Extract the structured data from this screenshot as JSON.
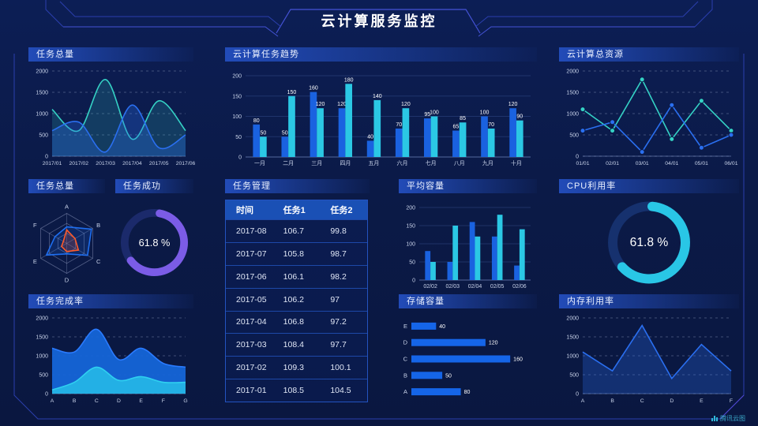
{
  "page": {
    "title": "云计算服务监控",
    "watermark": "腾讯云图"
  },
  "colors": {
    "background": "#0b1a47",
    "blue": "#1a62e0",
    "cyan": "#2bc8e4",
    "teal": "#35d2c5",
    "line_blue": "#2a6ff0",
    "purple": "#7b5ce6",
    "orange": "#ff5a2a",
    "frame_line": "#2b3fae",
    "frame_accent": "#4553d6",
    "table_header_bg": "#1a50b5"
  },
  "chart_data": [
    {
      "id": "task-total",
      "type": "line",
      "title": "任务总量",
      "smooth": true,
      "markers": false,
      "grid": "dashed",
      "x": [
        "2017/01",
        "2017/02",
        "2017/03",
        "2017/04",
        "2017/05",
        "2017/06"
      ],
      "ylim": [
        0,
        2000
      ],
      "yticks": [
        0,
        500,
        1000,
        1500,
        2000
      ],
      "series": [
        {
          "name": "teal-series",
          "color": "#35d2c5",
          "fillOpacity": 0.18,
          "values": [
            1100,
            600,
            1800,
            400,
            1300,
            600
          ]
        },
        {
          "name": "blue-series",
          "color": "#2a6ff0",
          "fillOpacity": 0.3,
          "values": [
            600,
            800,
            100,
            1200,
            200,
            500
          ]
        }
      ]
    },
    {
      "id": "task-trend",
      "type": "bar",
      "title": "云计算任务趋势",
      "value_labels": true,
      "categories": [
        "一月",
        "二月",
        "三月",
        "四月",
        "五月",
        "六月",
        "七月",
        "八月",
        "九月",
        "十月"
      ],
      "ylim": [
        0,
        200
      ],
      "yticks": [
        0,
        50,
        100,
        150,
        200
      ],
      "series": [
        {
          "name": "任务1",
          "color": "#1a62e0",
          "values": [
            80,
            50,
            160,
            120,
            40,
            70,
            95,
            65,
            100,
            120
          ]
        },
        {
          "name": "任务2",
          "color": "#2bc8e4",
          "values": [
            50,
            150,
            120,
            180,
            140,
            120,
            100,
            85,
            70,
            90
          ]
        }
      ]
    },
    {
      "id": "total-resource",
      "type": "line",
      "title": "云计算总资源",
      "smooth": false,
      "markers": true,
      "grid": "dashed",
      "x": [
        "01/01",
        "02/01",
        "03/01",
        "04/01",
        "05/01",
        "06/01"
      ],
      "ylim": [
        0,
        2000
      ],
      "yticks": [
        0,
        500,
        1000,
        1500,
        2000
      ],
      "series": [
        {
          "name": "teal-series",
          "color": "#35d2c5",
          "values": [
            1100,
            600,
            1800,
            400,
            1300,
            600
          ]
        },
        {
          "name": "blue-series",
          "color": "#2a6ff0",
          "values": [
            600,
            800,
            100,
            1200,
            200,
            500
          ]
        }
      ]
    },
    {
      "id": "task-radar",
      "type": "radar",
      "title": "任务总量",
      "axes": [
        "A",
        "B",
        "C",
        "D",
        "E",
        "F"
      ],
      "max": 100,
      "series": [
        {
          "name": "blue-polygon",
          "color": "#1e6ef0",
          "values": [
            55,
            95,
            80,
            35,
            78,
            45
          ]
        },
        {
          "name": "orange-polygon",
          "color": "#ff5a2a",
          "values": [
            45,
            32,
            45,
            27,
            20,
            13
          ]
        }
      ]
    },
    {
      "id": "task-success",
      "type": "donut",
      "title": "任务成功",
      "percent": 61.8,
      "label": "61.8 %",
      "color": "#7b5ce6",
      "track": "#1b2a6b",
      "start": -80
    },
    {
      "id": "task-table",
      "type": "table",
      "title": "任务管理",
      "headers": [
        "时间",
        "任务1",
        "任务2"
      ],
      "rows": [
        [
          "2017-08",
          "106.7",
          "99.8"
        ],
        [
          "2017-07",
          "105.8",
          "98.7"
        ],
        [
          "2017-06",
          "106.1",
          "98.2"
        ],
        [
          "2017-05",
          "106.2",
          "97"
        ],
        [
          "2017-04",
          "106.8",
          "97.2"
        ],
        [
          "2017-03",
          "108.4",
          "97.7"
        ],
        [
          "2017-02",
          "109.3",
          "100.1"
        ],
        [
          "2017-01",
          "108.5",
          "104.5"
        ]
      ]
    },
    {
      "id": "avg-capacity",
      "type": "bar",
      "title": "平均容量",
      "value_labels": false,
      "categories": [
        "02/02",
        "02/03",
        "02/04",
        "02/05",
        "02/06"
      ],
      "ylim": [
        0,
        200
      ],
      "yticks": [
        0,
        50,
        100,
        150,
        200
      ],
      "series": [
        {
          "name": "blue-bars",
          "color": "#1a62e0",
          "values": [
            80,
            50,
            160,
            120,
            40
          ]
        },
        {
          "name": "cyan-bars",
          "color": "#2bc8e4",
          "values": [
            50,
            150,
            120,
            180,
            140
          ]
        }
      ]
    },
    {
      "id": "cpu-usage",
      "type": "donut",
      "title": "CPU利用率",
      "percent": 61.8,
      "label": "61.8 %",
      "color": "#29c6e6",
      "track": "#16316e",
      "start": -85
    },
    {
      "id": "completion",
      "type": "line",
      "title": "任务完成率",
      "smooth": true,
      "markers": false,
      "grid": "dashed",
      "x": [
        "A",
        "B",
        "C",
        "D",
        "E",
        "F",
        "G"
      ],
      "ylim": [
        0,
        2000
      ],
      "yticks": [
        0,
        500,
        1000,
        1500,
        2000
      ],
      "series": [
        {
          "name": "blue-area",
          "color": "#1565d8",
          "line": "#2a7bff",
          "fillOpacity": 0.95,
          "values": [
            1200,
            1100,
            1700,
            900,
            1200,
            800,
            700
          ]
        },
        {
          "name": "cyan-area",
          "color": "#24b4e6",
          "line": "#2fd0f0",
          "fillOpacity": 0.95,
          "values": [
            100,
            300,
            700,
            350,
            450,
            300,
            300
          ]
        }
      ]
    },
    {
      "id": "storage",
      "type": "hbar",
      "title": "存储容量",
      "color": "#1565e8",
      "xmax": 170,
      "categories": [
        "E",
        "D",
        "C",
        "B",
        "A"
      ],
      "values": [
        40,
        120,
        160,
        50,
        80
      ]
    },
    {
      "id": "memory",
      "type": "line",
      "title": "内存利用率",
      "smooth": false,
      "markers": false,
      "grid": "dashed",
      "x": [
        "A",
        "B",
        "C",
        "D",
        "E",
        "F"
      ],
      "ylim": [
        0,
        2000
      ],
      "yticks": [
        0,
        500,
        1000,
        1500,
        2000
      ],
      "series": [
        {
          "name": "blue-series",
          "color": "#2a6ff0",
          "fillOpacity": 0.28,
          "values": [
            1100,
            600,
            1800,
            400,
            1300,
            600
          ]
        }
      ]
    }
  ]
}
